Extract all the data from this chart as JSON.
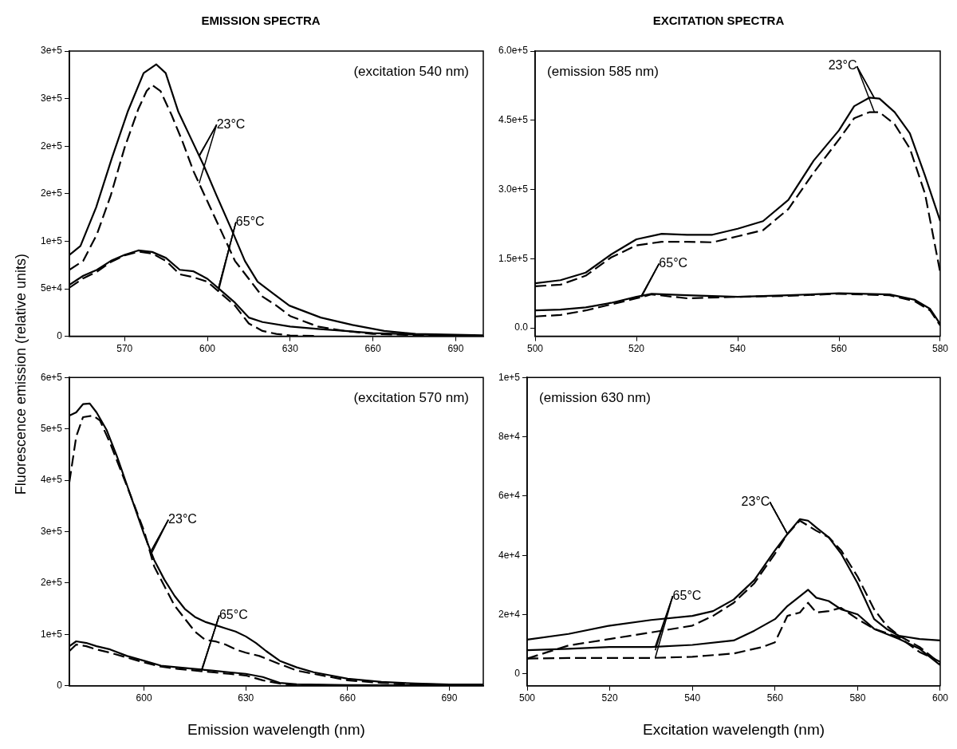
{
  "chart_data": [
    {
      "type": "line",
      "title": "EMISSION SPECTRA",
      "ylabel": "Fluorescence emission (relative units)",
      "marker": "none",
      "xlim": [
        550,
        700
      ],
      "xticks": [
        570,
        600,
        630,
        660,
        690
      ],
      "ylim": [
        0,
        300000
      ],
      "yticks": [
        {
          "value": 0,
          "label": "0"
        },
        {
          "value": 50000,
          "label": "5e+4"
        },
        {
          "value": 100000,
          "label": "1e+5"
        },
        {
          "value": 150000,
          "label": "2e+5"
        },
        {
          "value": 200000,
          "label": "2e+5"
        },
        {
          "value": 250000,
          "label": "3e+5"
        },
        {
          "value": 300000,
          "label": "3e+5"
        }
      ],
      "annotations": [
        "(excitation 540 nm)",
        {
          "text": "23°C",
          "x": 597,
          "y": 189000
        },
        {
          "text": "65°C",
          "x": 604,
          "y": 50500
        }
      ],
      "series": [
        {
          "color": "#000000",
          "line_style": "solid",
          "x": [
            550,
            554,
            559.7,
            565.4,
            571.1,
            576.9,
            581.5,
            584.9,
            589.5,
            594.1,
            598.7,
            603.3,
            609,
            613.6,
            618.2,
            623.9,
            629.7,
            641.1,
            652.6,
            664.1,
            675.5,
            700
          ],
          "values": [
            85600,
            95000,
            135700,
            187500,
            236000,
            276800,
            286000,
            276800,
            236000,
            207800,
            179600,
            148300,
            110700,
            79300,
            57400,
            44800,
            32300,
            19700,
            11900,
            5600,
            2500,
            1000
          ]
        },
        {
          "color": "#000000",
          "line_style": "dashed",
          "x": [
            550,
            555,
            560,
            565,
            570,
            575,
            578,
            580,
            583,
            587,
            591,
            595,
            600,
            605,
            610,
            615,
            620,
            625,
            630,
            640,
            650,
            660,
            680,
            700
          ],
          "values": [
            69900,
            79300,
            107500,
            148300,
            198400,
            239200,
            258000,
            264300,
            258000,
            233000,
            204700,
            173400,
            142000,
            110700,
            79300,
            60500,
            41700,
            32300,
            21300,
            10300,
            5600,
            2500,
            900,
            300
          ]
        },
        {
          "color": "#000000",
          "line_style": "solid",
          "x": [
            550,
            555,
            560,
            565,
            570,
            575,
            580,
            585,
            590,
            595,
            600,
            605,
            610,
            615,
            620,
            630,
            640,
            650,
            660,
            680,
            700
          ],
          "values": [
            54200,
            63600,
            69900,
            79300,
            85600,
            90300,
            88700,
            82400,
            69900,
            68300,
            60500,
            48000,
            35400,
            19700,
            15000,
            10300,
            7800,
            5600,
            3400,
            1600,
            300
          ]
        },
        {
          "color": "#000000",
          "line_style": "dashed",
          "x": [
            550,
            555,
            560,
            565,
            570,
            575,
            580,
            585,
            590,
            595,
            600,
            605,
            610,
            615,
            620,
            625,
            630,
            640
          ],
          "values": [
            51100,
            61000,
            68000,
            78000,
            85000,
            89000,
            87000,
            79300,
            65200,
            62100,
            57400,
            44800,
            32300,
            13500,
            5600,
            2500,
            900,
            300
          ]
        }
      ]
    },
    {
      "type": "line",
      "title": "EXCITATION SPECTRA",
      "marker": "none",
      "xlim": [
        500,
        580
      ],
      "xticks": [
        500,
        520,
        540,
        560,
        580
      ],
      "ylim": [
        -18000,
        600000
      ],
      "yticks": [
        {
          "value": 0,
          "label": "0.0"
        },
        {
          "value": 150000,
          "label": "1.5e+5"
        },
        {
          "value": 300000,
          "label": "3.0e+5"
        },
        {
          "value": 450000,
          "label": "4.5e+5"
        },
        {
          "value": 600000,
          "label": "6.0e+5"
        }
      ],
      "annotations": [
        "(emission 585 nm)",
        {
          "text": "23°C",
          "x": 567,
          "y": 498000
        },
        {
          "text": "65°C",
          "x": 521,
          "y": 70000
        }
      ],
      "series": [
        {
          "color": "#000000",
          "line_style": "solid",
          "x": [
            500,
            505,
            510,
            515,
            520,
            525,
            530,
            535,
            540,
            545,
            550,
            555,
            560,
            563,
            566,
            568,
            571,
            574,
            577,
            580
          ],
          "values": [
            97000,
            103600,
            120000,
            159300,
            192100,
            203900,
            202000,
            202000,
            215000,
            231500,
            277400,
            362600,
            428200,
            480600,
            499000,
            497000,
            467500,
            421600,
            329800,
            231500
          ]
        },
        {
          "color": "#000000",
          "line_style": "dashed",
          "x": [
            500,
            505,
            510,
            515,
            520,
            525,
            530,
            535,
            540,
            545,
            550,
            555,
            560,
            563,
            566,
            568,
            571,
            574,
            577,
            580
          ],
          "values": [
            90500,
            93800,
            113400,
            152800,
            179000,
            186900,
            186900,
            185600,
            198700,
            211800,
            257700,
            336400,
            408500,
            454400,
            467500,
            467500,
            441300,
            388800,
            290500,
            120000
          ]
        },
        {
          "color": "#000000",
          "line_style": "solid",
          "x": [
            500,
            505,
            510,
            515,
            520,
            523,
            530,
            540,
            550,
            560,
            570,
            575,
            578,
            580
          ],
          "values": [
            38000,
            40000,
            44600,
            54400,
            67500,
            74100,
            70800,
            67500,
            70800,
            75400,
            72800,
            61000,
            41300,
            8500
          ]
        },
        {
          "color": "#000000",
          "line_style": "dashed",
          "x": [
            500,
            505,
            510,
            515,
            520,
            523,
            530,
            540,
            550,
            560,
            570,
            575,
            578,
            580
          ],
          "values": [
            24900,
            28200,
            38000,
            51100,
            64300,
            72800,
            64300,
            67500,
            69500,
            74100,
            70800,
            57700,
            38000,
            5200
          ]
        }
      ]
    },
    {
      "type": "line",
      "xlabel": "Emission wavelength (nm)",
      "marker": "none",
      "xlim": [
        578,
        700
      ],
      "xticks": [
        600,
        630,
        660,
        690
      ],
      "ylim": [
        0,
        600000
      ],
      "yticks": [
        {
          "value": 0,
          "label": "0"
        },
        {
          "value": 100000,
          "label": "1e+5"
        },
        {
          "value": 200000,
          "label": "2e+5"
        },
        {
          "value": 300000,
          "label": "3e+5"
        },
        {
          "value": 400000,
          "label": "4e+5"
        },
        {
          "value": 500000,
          "label": "5e+5"
        },
        {
          "value": 600000,
          "label": "6e+5"
        }
      ],
      "annotations": [
        "(excitation 570 nm)",
        {
          "text": "23°C",
          "x": 602,
          "y": 261000
        },
        {
          "text": "65°C",
          "x": 617,
          "y": 31600
        }
      ],
      "series": [
        {
          "color": "#000000",
          "line_style": "solid",
          "x": [
            578,
            580,
            582,
            584,
            586,
            589,
            592,
            595,
            598,
            600,
            603,
            606,
            609,
            612,
            615,
            618,
            621,
            624,
            627,
            630,
            633,
            636,
            640,
            645,
            650,
            655,
            660,
            670,
            680,
            690,
            700
          ],
          "values": [
            525800,
            532100,
            548000,
            549200,
            532000,
            497400,
            446800,
            390000,
            333100,
            295100,
            244600,
            206700,
            175100,
            149800,
            134000,
            124500,
            118200,
            111900,
            105500,
            96100,
            83400,
            67600,
            48700,
            36000,
            26500,
            20200,
            13900,
            7600,
            4400,
            2500,
            2500
          ]
        },
        {
          "color": "#000000",
          "line_style": "dashed",
          "x": [
            578,
            580,
            582,
            585,
            587,
            590,
            593,
            596,
            600,
            603,
            606,
            609,
            612,
            615,
            618,
            621,
            624,
            627,
            630,
            634,
            640,
            645,
            650,
            655,
            660,
            670,
            680,
            700
          ],
          "values": [
            396300,
            484700,
            522700,
            525800,
            516300,
            472100,
            421600,
            371000,
            301500,
            232000,
            194000,
            156100,
            130800,
            105500,
            89700,
            86500,
            80300,
            70800,
            64500,
            58100,
            42300,
            29700,
            23400,
            17100,
            10700,
            5700,
            3200,
            1900
          ]
        },
        {
          "color": "#000000",
          "line_style": "solid",
          "x": [
            578,
            580,
            583,
            586,
            590,
            595,
            600,
            605,
            610,
            615,
            620,
            625,
            630,
            635,
            640,
            645,
            660,
            700
          ],
          "values": [
            77100,
            86600,
            83400,
            77100,
            70800,
            58100,
            48700,
            39200,
            36000,
            32900,
            29700,
            26500,
            23400,
            17100,
            5700,
            3200,
            1300,
            600
          ]
        },
        {
          "color": "#000000",
          "line_style": "dashed",
          "x": [
            578,
            580,
            583,
            586,
            590,
            595,
            600,
            605,
            610,
            615,
            620,
            625,
            630,
            635,
            640,
            645,
            660,
            700
          ],
          "values": [
            67600,
            80300,
            77100,
            70800,
            64500,
            55000,
            45500,
            37300,
            32900,
            29700,
            26500,
            23400,
            20200,
            10700,
            4400,
            1900,
            600,
            600
          ]
        }
      ]
    },
    {
      "type": "line",
      "xlabel": "Excitation wavelength (nm)",
      "marker": "none",
      "xlim": [
        500,
        600
      ],
      "xticks": [
        500,
        520,
        540,
        560,
        580,
        600
      ],
      "ylim": [
        -4000,
        100000
      ],
      "yticks": [
        {
          "value": 0,
          "label": "0"
        },
        {
          "value": 20000,
          "label": "2e+4"
        },
        {
          "value": 40000,
          "label": "4e+4"
        },
        {
          "value": 60000,
          "label": "6e+4"
        },
        {
          "value": 80000,
          "label": "8e+4"
        },
        {
          "value": 100000,
          "label": "1e+5"
        }
      ],
      "annotations": [
        "(emission 630 nm)",
        {
          "text": "23°C",
          "x": 563,
          "y": 47200
        },
        {
          "text": "65°C",
          "x": 531,
          "y": 8000
        }
      ],
      "series": [
        {
          "color": "#000000",
          "line_style": "solid",
          "x": [
            500,
            510,
            520,
            530,
            540,
            545,
            550,
            555,
            560,
            563,
            566,
            568,
            570,
            573,
            576,
            580,
            584,
            587,
            590,
            595,
            600
          ],
          "values": [
            11600,
            13500,
            16300,
            18200,
            19600,
            21200,
            25100,
            31700,
            41700,
            47200,
            52200,
            51700,
            49400,
            46100,
            40600,
            30600,
            18500,
            15200,
            12900,
            11800,
            11300
          ]
        },
        {
          "color": "#000000",
          "line_style": "dashed",
          "x": [
            500,
            505,
            510,
            520,
            530,
            540,
            545,
            550,
            555,
            560,
            563,
            566,
            568,
            570,
            573,
            576,
            580,
            584,
            587,
            590,
            595,
            600
          ],
          "values": [
            5200,
            7400,
            9600,
            11800,
            14000,
            16300,
            19600,
            24000,
            30600,
            40600,
            47200,
            51700,
            50000,
            48300,
            46100,
            41700,
            32800,
            21800,
            16300,
            12900,
            9100,
            3500
          ]
        },
        {
          "color": "#000000",
          "line_style": "solid",
          "x": [
            500,
            510,
            520,
            530,
            540,
            550,
            555,
            560,
            563,
            566,
            568,
            570,
            573,
            576,
            580,
            584,
            590,
            595,
            600
          ],
          "values": [
            8000,
            8500,
            9100,
            9100,
            9800,
            11300,
            14600,
            18500,
            22900,
            26200,
            28400,
            25700,
            24600,
            21800,
            20100,
            15200,
            11800,
            8500,
            3000
          ]
        },
        {
          "color": "#000000",
          "line_style": "dashed",
          "x": [
            500,
            510,
            520,
            530,
            540,
            550,
            557,
            560,
            563,
            566,
            568,
            570,
            573,
            576,
            580,
            584,
            590,
            595,
            600
          ],
          "values": [
            5200,
            5400,
            5400,
            5400,
            5800,
            6900,
            9100,
            10700,
            19600,
            20700,
            24000,
            20700,
            21200,
            22300,
            18500,
            15200,
            12400,
            7400,
            4100
          ]
        }
      ]
    }
  ]
}
